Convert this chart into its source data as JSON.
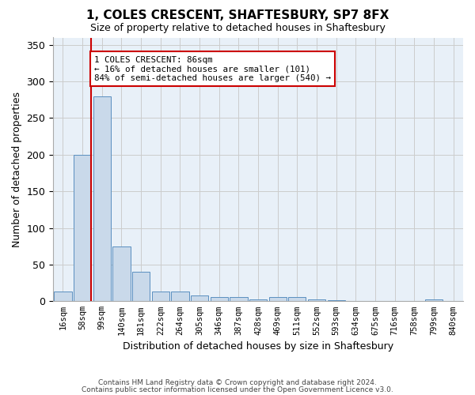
{
  "title_line1": "1, COLES CRESCENT, SHAFTESBURY, SP7 8FX",
  "title_line2": "Size of property relative to detached houses in Shaftesbury",
  "xlabel": "Distribution of detached houses by size in Shaftesbury",
  "ylabel": "Number of detached properties",
  "bar_color": "#c9d9ea",
  "bar_edge_color": "#5a8fc0",
  "background_color": "#ffffff",
  "plot_bg_color": "#e8f0f8",
  "grid_color": "#cccccc",
  "annotation_box_color": "#cc0000",
  "annotation_line_color": "#cc0000",
  "annotation_text": "1 COLES CRESCENT: 86sqm\n← 16% of detached houses are smaller (101)\n84% of semi-detached houses are larger (540) →",
  "property_bin_index": 1,
  "bin_labels": [
    "16sqm",
    "58sqm",
    "99sqm",
    "140sqm",
    "181sqm",
    "222sqm",
    "264sqm",
    "305sqm",
    "346sqm",
    "387sqm",
    "428sqm",
    "469sqm",
    "511sqm",
    "552sqm",
    "593sqm",
    "634sqm",
    "675sqm",
    "716sqm",
    "758sqm",
    "799sqm",
    "840sqm"
  ],
  "values": [
    13,
    200,
    280,
    75,
    40,
    13,
    13,
    8,
    6,
    6,
    3,
    6,
    6,
    2,
    1,
    0,
    0,
    0,
    0,
    3,
    0
  ],
  "ylim": [
    0,
    360
  ],
  "yticks": [
    0,
    50,
    100,
    150,
    200,
    250,
    300,
    350
  ],
  "footer_line1": "Contains HM Land Registry data © Crown copyright and database right 2024.",
  "footer_line2": "Contains public sector information licensed under the Open Government Licence v3.0."
}
